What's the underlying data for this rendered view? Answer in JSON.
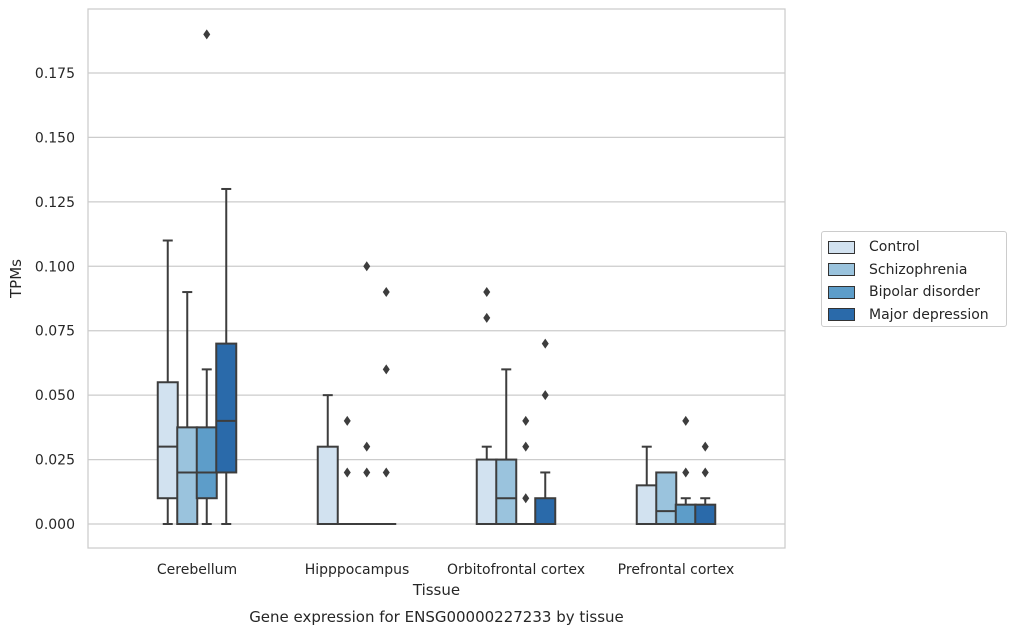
{
  "chart_data": {
    "type": "box",
    "title": "Gene expression for ENSG00000227233 by tissue",
    "xlabel": "Tissue",
    "ylabel": "TPMs",
    "ylim": [
      -0.009,
      0.197
    ],
    "yticks": [
      "0.000",
      "0.025",
      "0.050",
      "0.075",
      "0.100",
      "0.125",
      "0.150",
      "0.175"
    ],
    "grid": "horizontal",
    "legend_position": "right",
    "categories": [
      "Cerebellum",
      "Hipppocampus",
      "Orbitofrontal cortex",
      "Prefrontal cortex"
    ],
    "series": [
      {
        "name": "Control",
        "color": "#d2e2f0",
        "boxes": [
          {
            "whisker_low": 0.0,
            "q1": 0.01,
            "median": 0.03,
            "q3": 0.055,
            "whisker_high": 0.11,
            "outliers": []
          },
          {
            "whisker_low": 0.0,
            "q1": 0.0,
            "median": 0.0,
            "q3": 0.03,
            "whisker_high": 0.05,
            "outliers": []
          },
          {
            "whisker_low": 0.0,
            "q1": 0.0,
            "median": 0.0,
            "q3": 0.025,
            "whisker_high": 0.03,
            "outliers": [
              0.08,
              0.09
            ]
          },
          {
            "whisker_low": 0.0,
            "q1": 0.0,
            "median": 0.0,
            "q3": 0.015,
            "whisker_high": 0.03,
            "outliers": []
          }
        ]
      },
      {
        "name": "Schizophrenia",
        "color": "#9ac3dd",
        "boxes": [
          {
            "whisker_low": 0.0,
            "q1": 0.0,
            "median": 0.02,
            "q3": 0.0375,
            "whisker_high": 0.09,
            "outliers": []
          },
          {
            "whisker_low": 0.0,
            "q1": 0.0,
            "median": 0.0,
            "q3": 0.0,
            "whisker_high": 0.0,
            "outliers": [
              0.02,
              0.04
            ]
          },
          {
            "whisker_low": 0.0,
            "q1": 0.0,
            "median": 0.01,
            "q3": 0.025,
            "whisker_high": 0.06,
            "outliers": []
          },
          {
            "whisker_low": 0.0,
            "q1": 0.0,
            "median": 0.005,
            "q3": 0.02,
            "whisker_high": 0.02,
            "outliers": []
          }
        ]
      },
      {
        "name": "Bipolar disorder",
        "color": "#5d9dc9",
        "boxes": [
          {
            "whisker_low": 0.0,
            "q1": 0.01,
            "median": 0.02,
            "q3": 0.0375,
            "whisker_high": 0.06,
            "outliers": [
              0.19
            ]
          },
          {
            "whisker_low": 0.0,
            "q1": 0.0,
            "median": 0.0,
            "q3": 0.0,
            "whisker_high": 0.0,
            "outliers": [
              0.02,
              0.03,
              0.1
            ]
          },
          {
            "whisker_low": 0.0,
            "q1": 0.0,
            "median": 0.0,
            "q3": 0.0,
            "whisker_high": 0.0,
            "outliers": [
              0.01,
              0.03,
              0.04
            ]
          },
          {
            "whisker_low": 0.0,
            "q1": 0.0,
            "median": 0.0,
            "q3": 0.0075,
            "whisker_high": 0.01,
            "outliers": [
              0.02,
              0.04
            ]
          }
        ]
      },
      {
        "name": "Major depression",
        "color": "#2a6aaa",
        "boxes": [
          {
            "whisker_low": 0.0,
            "q1": 0.02,
            "median": 0.04,
            "q3": 0.07,
            "whisker_high": 0.13,
            "outliers": []
          },
          {
            "whisker_low": 0.0,
            "q1": 0.0,
            "median": 0.0,
            "q3": 0.0,
            "whisker_high": 0.0,
            "outliers": [
              0.02,
              0.06,
              0.09
            ]
          },
          {
            "whisker_low": 0.0,
            "q1": 0.0,
            "median": 0.0,
            "q3": 0.01,
            "whisker_high": 0.02,
            "outliers": [
              0.05,
              0.07
            ]
          },
          {
            "whisker_low": 0.0,
            "q1": 0.0,
            "median": 0.0,
            "q3": 0.0075,
            "whisker_high": 0.01,
            "outliers": [
              0.02,
              0.03
            ]
          }
        ]
      }
    ]
  }
}
